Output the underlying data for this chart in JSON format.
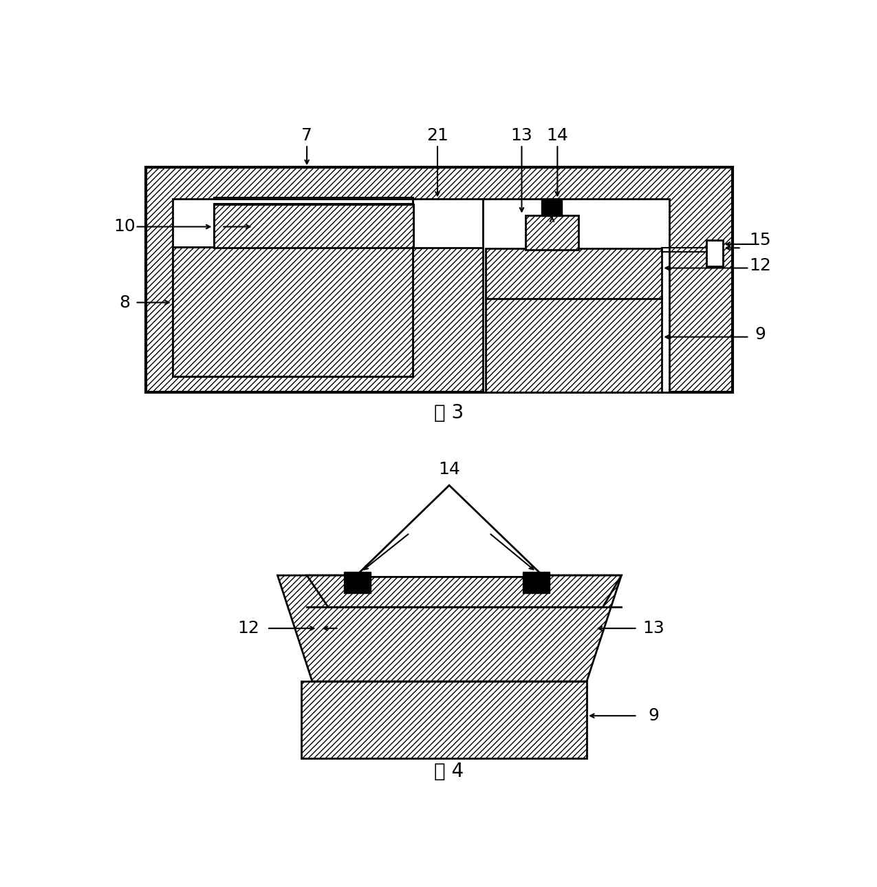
{
  "fig_width": 12.75,
  "fig_height": 12.89,
  "bg_color": "#ffffff",
  "fig3_caption": "图 3",
  "fig4_caption": "图 4",
  "label_fontsize": 18,
  "caption_fontsize": 20
}
